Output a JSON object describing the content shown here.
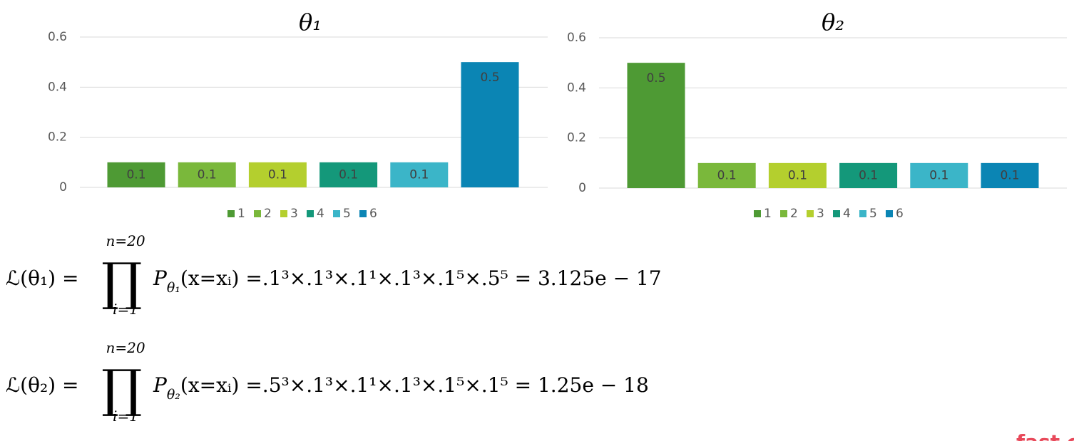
{
  "chart_data": [
    {
      "type": "bar",
      "title": "θ₁",
      "series": [
        {
          "name": "1",
          "color": "#4e9a34",
          "values": [
            0.1
          ]
        },
        {
          "name": "2",
          "color": "#7ab83b",
          "values": [
            0.1
          ]
        },
        {
          "name": "3",
          "color": "#b4cf2e",
          "values": [
            0.1
          ]
        },
        {
          "name": "4",
          "color": "#14987a",
          "values": [
            0.1
          ]
        },
        {
          "name": "5",
          "color": "#3bb5c8",
          "values": [
            0.1
          ]
        },
        {
          "name": "6",
          "color": "#0b85b4",
          "values": [
            0.5
          ]
        }
      ],
      "ylim": [
        0,
        0.6
      ],
      "yticks": [
        0,
        0.2,
        0.4,
        0.6
      ],
      "grid": true,
      "legend": "bottom"
    },
    {
      "type": "bar",
      "title": "θ₂",
      "series": [
        {
          "name": "1",
          "color": "#4e9a34",
          "values": [
            0.5
          ]
        },
        {
          "name": "2",
          "color": "#7ab83b",
          "values": [
            0.1
          ]
        },
        {
          "name": "3",
          "color": "#b4cf2e",
          "values": [
            0.1
          ]
        },
        {
          "name": "4",
          "color": "#14987a",
          "values": [
            0.1
          ]
        },
        {
          "name": "5",
          "color": "#3bb5c8",
          "values": [
            0.1
          ]
        },
        {
          "name": "6",
          "color": "#0b85b4",
          "values": [
            0.1
          ]
        }
      ],
      "ylim": [
        0,
        0.6
      ],
      "yticks": [
        0,
        0.2,
        0.4,
        0.6
      ],
      "grid": true,
      "legend": "bottom"
    }
  ],
  "formulas": [
    {
      "lhs": "ℒ(θ₁) =",
      "product": "∏",
      "upper": "n=20",
      "lower": "i=1",
      "p": "P",
      "p_sub": "θ₁",
      "rhs": "(x=xᵢ) =.1³×.1³×.1¹×.1³×.1⁵×.5⁵ = 3.125e − 17"
    },
    {
      "lhs": "ℒ(θ₂) =",
      "product": "∏",
      "upper": "n=20",
      "lower": "i=1",
      "p": "P",
      "p_sub": "θ₂",
      "rhs": "(x=xᵢ) =.5³×.1³×.1¹×.1³×.1⁵×.1⁵ = 1.25e − 18"
    }
  ],
  "logo_text": "fast c"
}
